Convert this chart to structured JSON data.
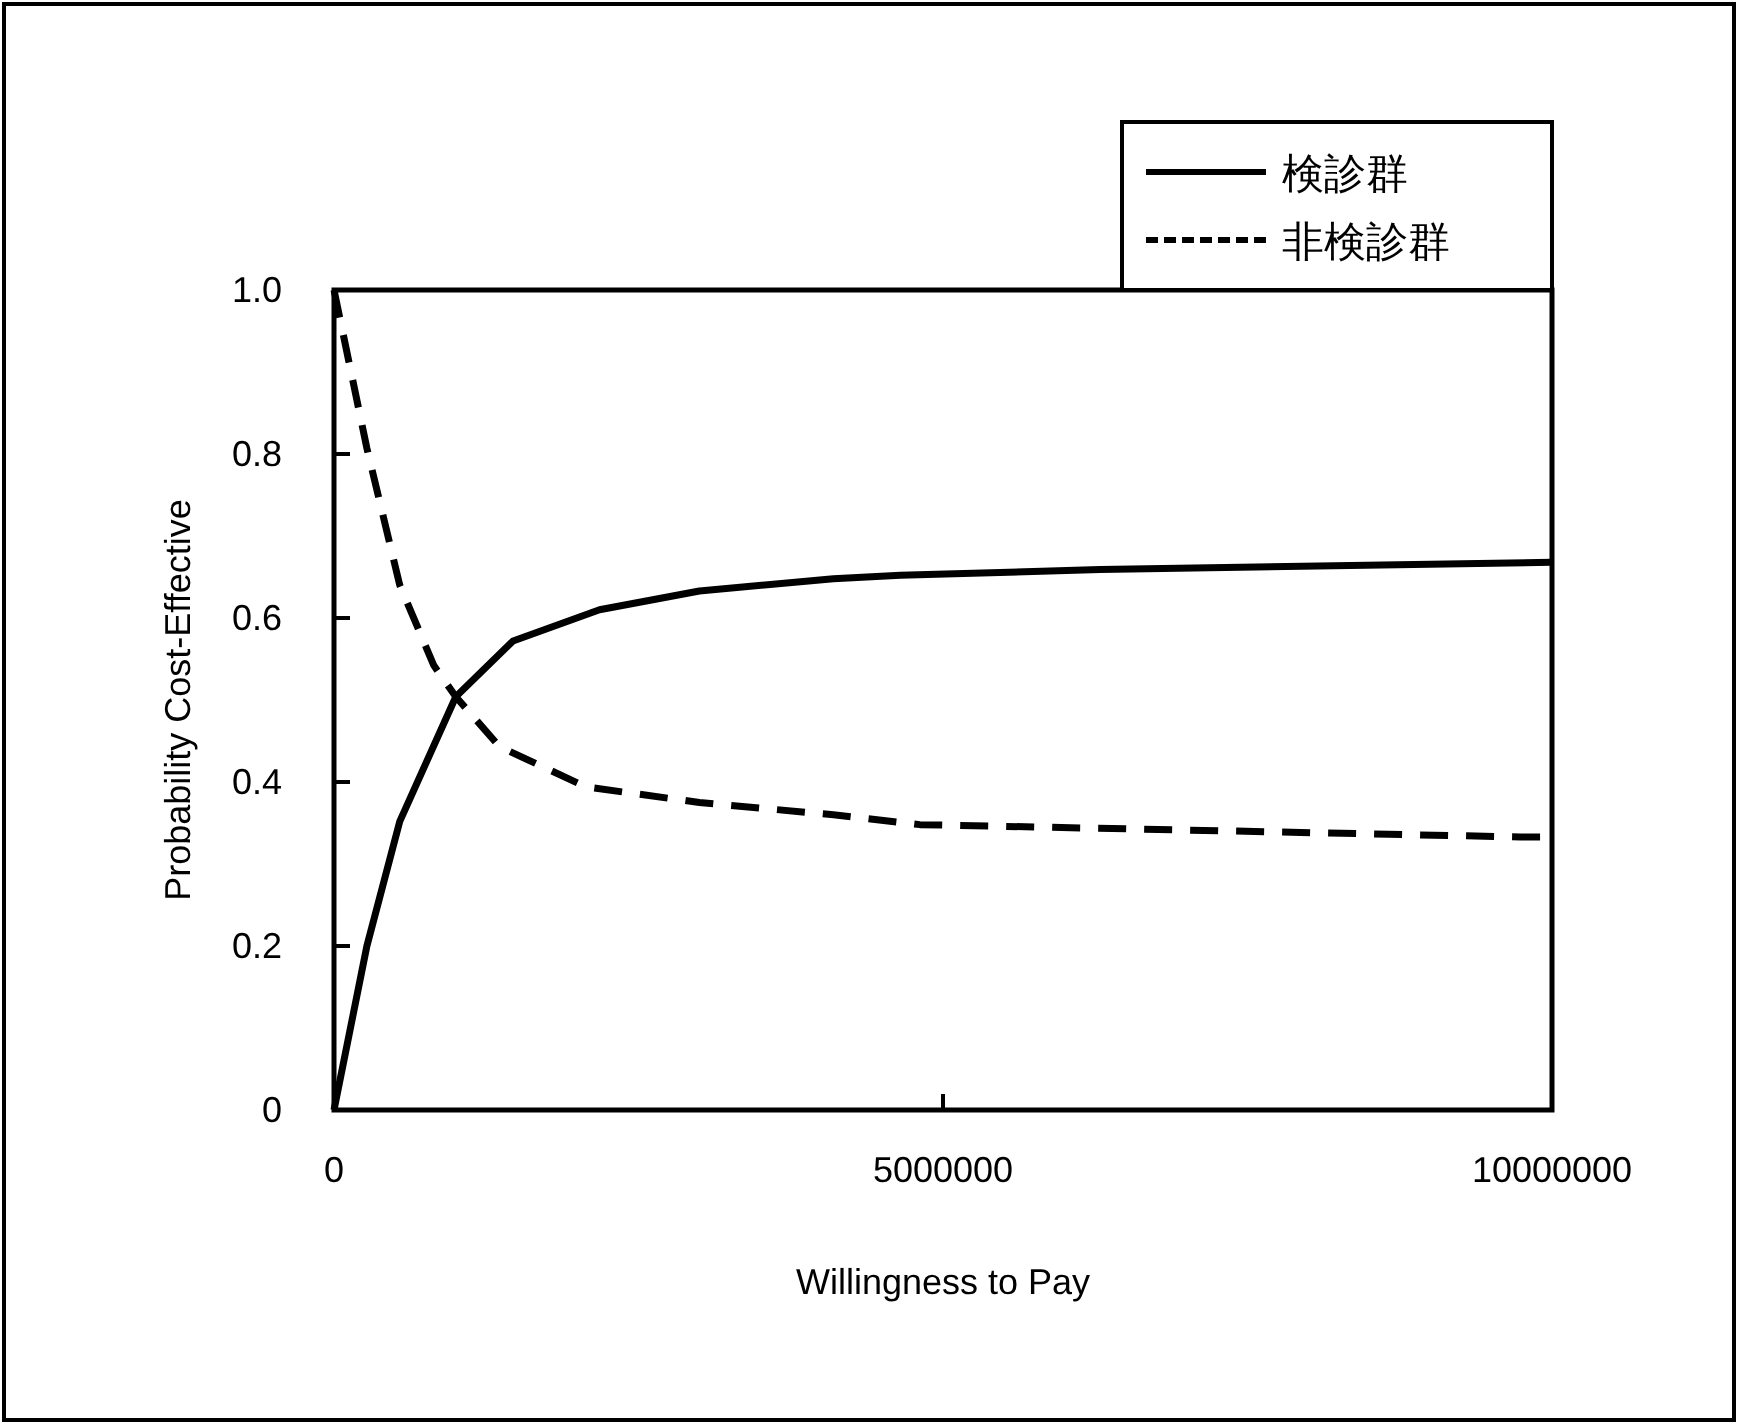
{
  "chart_data": {
    "type": "line",
    "xlabel": "Willingness to Pay",
    "ylabel": "Probability Cost-Effective",
    "xlim": [
      0,
      10000000
    ],
    "xticks": [
      0,
      5000000,
      10000000
    ],
    "ylim": [
      0,
      1
    ],
    "yticks": [
      0,
      0.2,
      0.4,
      0.6,
      0.8,
      {
        "value": 1,
        "label": "1.0"
      }
    ],
    "grid": false,
    "legend": "top right",
    "series": [
      {
        "name": "検診群",
        "color": "#000000",
        "line_style": "solid",
        "x": [
          0,
          270000,
          540000,
          1000000,
          1470000,
          2180000,
          3000000,
          4100000,
          4650000,
          6290000,
          10000000
        ],
        "values": [
          0,
          0.2,
          0.352,
          0.504,
          0.572,
          0.61,
          0.633,
          0.648,
          0.652,
          0.659,
          0.668
        ]
      },
      {
        "name": "非検診群",
        "color": "#000000",
        "line_style": "dashed",
        "x": [
          0,
          270000,
          540000,
          820000,
          1000000,
          1360000,
          2070000,
          3000000,
          4100000,
          4810000,
          9740000,
          10000000
        ],
        "values": [
          1,
          0.807,
          0.64,
          0.542,
          0.504,
          0.443,
          0.394,
          0.375,
          0.36,
          0.348,
          0.333,
          0.333
        ]
      }
    ]
  }
}
